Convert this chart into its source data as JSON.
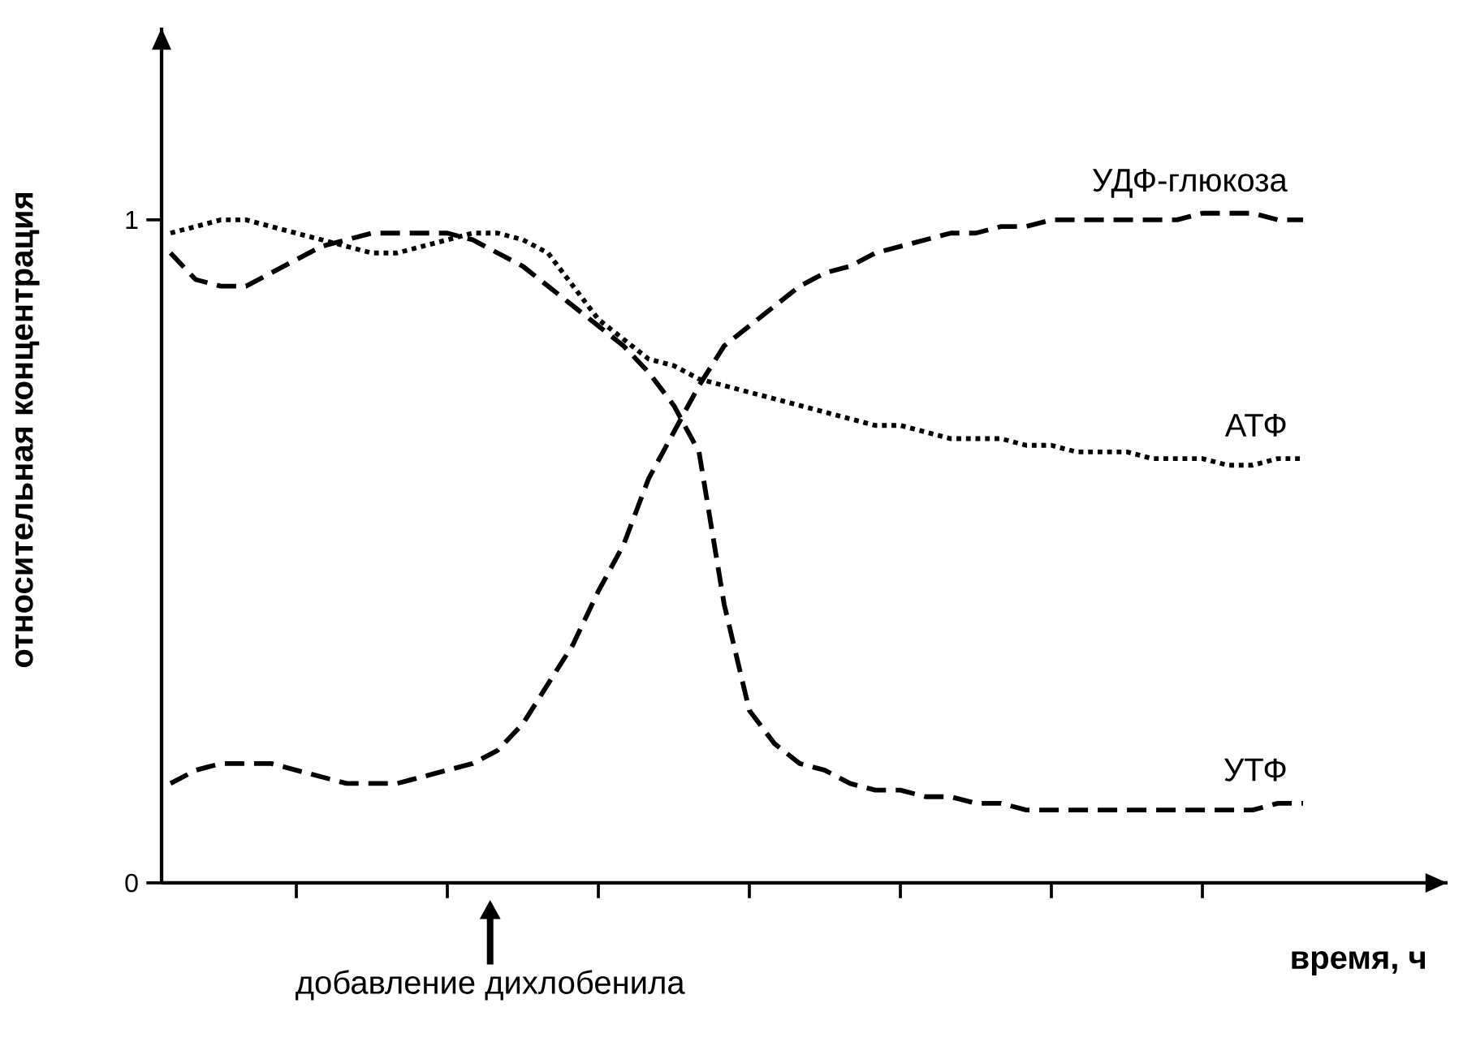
{
  "chart_data": {
    "type": "line",
    "xlabel": "время, ч",
    "ylabel": "относительная  концентрация",
    "categories": [
      null,
      null,
      null,
      null,
      null,
      null,
      null,
      null,
      null,
      null,
      null,
      null,
      null,
      null,
      null,
      null,
      null,
      null,
      null,
      null,
      null,
      null,
      null,
      null,
      null,
      null,
      null,
      null,
      null,
      null,
      null,
      null,
      null,
      null,
      null,
      null,
      null,
      null,
      null,
      null,
      null,
      null,
      null,
      null,
      null,
      null
    ],
    "ylim": [
      0,
      1.29
    ],
    "yticks": [
      {
        "value": 0,
        "label": "0"
      },
      {
        "value": 1,
        "label": "1"
      }
    ],
    "grid": false,
    "legend": false,
    "marker": "none",
    "series": [
      {
        "name": "УДФ-глюкоза",
        "color": "#000000",
        "line_style": "dashed",
        "values": [
          0.15,
          0.17,
          0.18,
          0.18,
          0.18,
          0.17,
          0.16,
          0.15,
          0.15,
          0.15,
          0.16,
          0.17,
          0.18,
          0.2,
          0.24,
          0.3,
          0.36,
          0.44,
          0.51,
          0.61,
          0.68,
          0.75,
          0.81,
          0.84,
          0.87,
          0.9,
          0.92,
          0.93,
          0.95,
          0.96,
          0.97,
          0.98,
          0.98,
          0.99,
          0.99,
          1.0,
          1.0,
          1.0,
          1.0,
          1.0,
          1.0,
          1.01,
          1.01,
          1.01,
          1.0,
          1.0
        ]
      },
      {
        "name": "АТФ",
        "color": "#000000",
        "line_style": "dotted",
        "values": [
          0.98,
          0.99,
          1.0,
          1.0,
          0.99,
          0.98,
          0.97,
          0.96,
          0.95,
          0.95,
          0.96,
          0.97,
          0.98,
          0.98,
          0.97,
          0.95,
          0.9,
          0.85,
          0.82,
          0.79,
          0.78,
          0.76,
          0.75,
          0.74,
          0.73,
          0.72,
          0.71,
          0.7,
          0.69,
          0.69,
          0.68,
          0.67,
          0.67,
          0.67,
          0.66,
          0.66,
          0.65,
          0.65,
          0.65,
          0.64,
          0.64,
          0.64,
          0.63,
          0.63,
          0.64,
          0.64
        ]
      },
      {
        "name": "УТФ",
        "color": "#000000",
        "line_style": "dashed",
        "values": [
          0.95,
          0.91,
          0.9,
          0.9,
          0.92,
          0.94,
          0.96,
          0.97,
          0.98,
          0.98,
          0.98,
          0.98,
          0.97,
          0.95,
          0.93,
          0.9,
          0.87,
          0.84,
          0.81,
          0.77,
          0.72,
          0.65,
          0.42,
          0.26,
          0.21,
          0.18,
          0.17,
          0.15,
          0.14,
          0.14,
          0.13,
          0.13,
          0.12,
          0.12,
          0.11,
          0.11,
          0.11,
          0.11,
          0.11,
          0.11,
          0.11,
          0.11,
          0.11,
          0.11,
          0.12,
          0.12
        ]
      }
    ],
    "annotations": [
      "добавление дихлобенила"
    ]
  }
}
